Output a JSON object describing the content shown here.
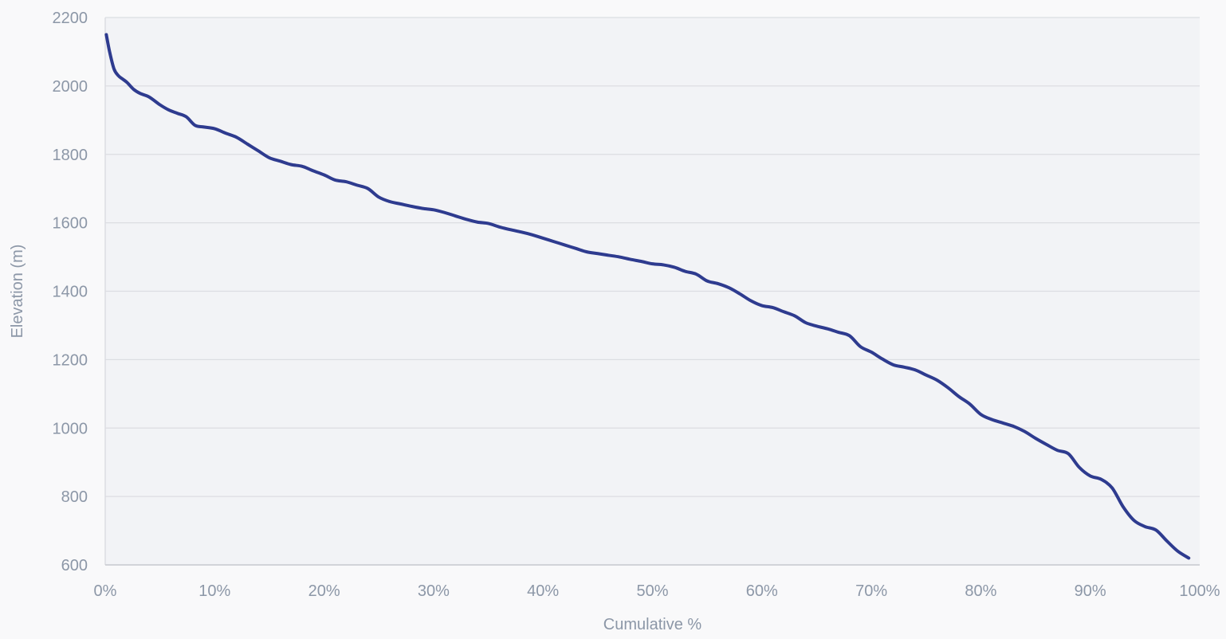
{
  "chart_data": {
    "type": "line",
    "title": "",
    "xlabel": "Cumulative %",
    "ylabel": "Elevation (m)",
    "xlim": [
      0,
      100
    ],
    "ylim": [
      600,
      2200
    ],
    "x_ticks": [
      0,
      10,
      20,
      30,
      40,
      50,
      60,
      70,
      80,
      90,
      100
    ],
    "x_tick_labels": [
      "0%",
      "10%",
      "20%",
      "30%",
      "40%",
      "50%",
      "60%",
      "70%",
      "80%",
      "90%",
      "100%"
    ],
    "y_ticks": [
      600,
      800,
      1000,
      1200,
      1400,
      1600,
      1800,
      2000,
      2200
    ],
    "y_tick_labels": [
      "600",
      "800",
      "1000",
      "1200",
      "1400",
      "1600",
      "1800",
      "2000",
      "2200"
    ],
    "grid": true,
    "legend": "none",
    "colors": {
      "line": "#2e3b8f",
      "plot_background": "#f2f3f6",
      "grid": "#dcdde2",
      "axis_text": "#8c97a7"
    },
    "series": [
      {
        "x": [
          0.1,
          0.4,
          0.8,
          1.2,
          1.6,
          2.0,
          2.6,
          3.2,
          4.0,
          5.0,
          5.8,
          6.6,
          7.4,
          8.2,
          9.0,
          10.0,
          11.0,
          12.0,
          13.0,
          14.0,
          15.0,
          16.0,
          17.0,
          18.0,
          19.0,
          20.0,
          21.0,
          22.0,
          23.0,
          24.0,
          25.0,
          26.0,
          27.0,
          28.0,
          29.0,
          30.0,
          31.0,
          32.0,
          33.0,
          34.0,
          35.0,
          36.0,
          37.0,
          38.0,
          39.0,
          40.0,
          41.0,
          42.0,
          43.0,
          44.0,
          45.0,
          46.0,
          47.0,
          48.0,
          49.0,
          50.0,
          51.0,
          52.0,
          53.0,
          54.0,
          55.0,
          56.0,
          57.0,
          58.0,
          59.0,
          60.0,
          61.0,
          62.0,
          63.0,
          64.0,
          65.0,
          66.0,
          67.0,
          68.0,
          69.0,
          70.0,
          71.0,
          72.0,
          73.0,
          74.0,
          75.0,
          76.0,
          77.0,
          78.0,
          79.0,
          80.0,
          81.0,
          82.0,
          83.0,
          84.0,
          85.0,
          86.0,
          87.0,
          88.0,
          89.0,
          90.0,
          91.0,
          92.0,
          93.0,
          94.0,
          95.0,
          96.0,
          97.0,
          98.0,
          99.0
        ],
        "y": [
          2150,
          2100,
          2050,
          2030,
          2020,
          2010,
          1990,
          1978,
          1968,
          1945,
          1930,
          1920,
          1910,
          1885,
          1880,
          1875,
          1862,
          1850,
          1830,
          1810,
          1790,
          1780,
          1770,
          1765,
          1752,
          1740,
          1725,
          1720,
          1710,
          1700,
          1675,
          1662,
          1655,
          1648,
          1642,
          1638,
          1630,
          1620,
          1610,
          1602,
          1598,
          1588,
          1580,
          1573,
          1565,
          1555,
          1545,
          1535,
          1525,
          1515,
          1510,
          1505,
          1500,
          1493,
          1487,
          1480,
          1477,
          1470,
          1458,
          1450,
          1430,
          1422,
          1410,
          1392,
          1372,
          1358,
          1352,
          1340,
          1328,
          1308,
          1298,
          1290,
          1280,
          1270,
          1238,
          1222,
          1202,
          1185,
          1178,
          1170,
          1155,
          1140,
          1118,
          1092,
          1070,
          1040,
          1025,
          1015,
          1005,
          990,
          970,
          952,
          935,
          925,
          885,
          860,
          850,
          825,
          770,
          730,
          712,
          702,
          670,
          640,
          620
        ]
      }
    ]
  }
}
